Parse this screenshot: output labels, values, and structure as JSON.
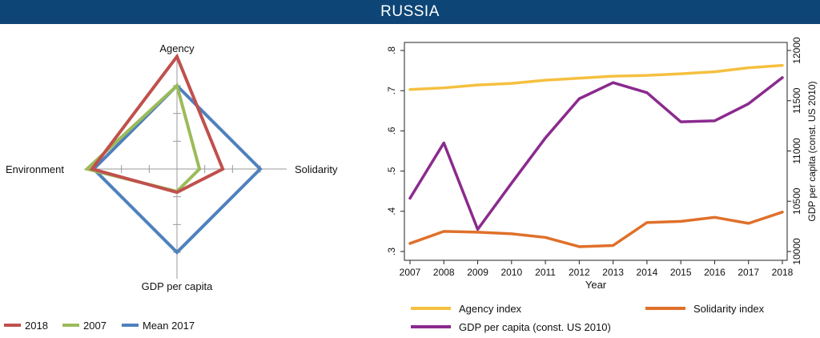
{
  "header": {
    "title": "RUSSIA"
  },
  "chart_data": [
    {
      "type": "radar",
      "axes": [
        "Agency",
        "Solidarity",
        "GDP per capita",
        "Environment"
      ],
      "series": [
        {
          "name": "2018",
          "color": "#c0504d",
          "values": [
            1.35,
            0.55,
            0.28,
            1.02
          ]
        },
        {
          "name": "2007",
          "color": "#9bbb59",
          "values": [
            1.0,
            0.27,
            0.27,
            1.08
          ]
        },
        {
          "name": "Mean 2017",
          "color": "#4f81bd",
          "values": [
            1.0,
            1.0,
            1.0,
            1.0
          ]
        }
      ],
      "legend": "bottom"
    },
    {
      "type": "line",
      "xlabel": "Year",
      "y2label": "GDP per capita (const. US 2010)",
      "x": [
        2007,
        2008,
        2009,
        2010,
        2011,
        2012,
        2013,
        2014,
        2015,
        2016,
        2017,
        2018
      ],
      "ylim": [
        0.3,
        0.8
      ],
      "y2lim": [
        10000,
        12000
      ],
      "yticks": [
        ".3",
        ".4",
        ".5",
        ".6",
        ".7",
        ".8"
      ],
      "y2ticks": [
        "10000",
        "10500",
        "11000",
        "11500",
        "12000"
      ],
      "series": [
        {
          "name": "Agency index",
          "axis": "left",
          "color": "#f5c040",
          "values": [
            0.703,
            0.707,
            0.714,
            0.718,
            0.726,
            0.731,
            0.736,
            0.738,
            0.742,
            0.747,
            0.757,
            0.763
          ]
        },
        {
          "name": "Solidarity index",
          "axis": "left",
          "color": "#e0702a",
          "values": [
            0.32,
            0.35,
            0.348,
            0.344,
            0.335,
            0.312,
            0.315,
            0.372,
            0.375,
            0.385,
            0.37,
            0.398
          ]
        },
        {
          "name": "GDP per capita (const. US 2010)",
          "axis": "right",
          "color": "#8b2a8e",
          "values": [
            10530,
            11080,
            10220,
            10680,
            11130,
            11520,
            11680,
            11580,
            11290,
            11300,
            11470,
            11730
          ]
        }
      ],
      "legend": "bottom"
    }
  ]
}
